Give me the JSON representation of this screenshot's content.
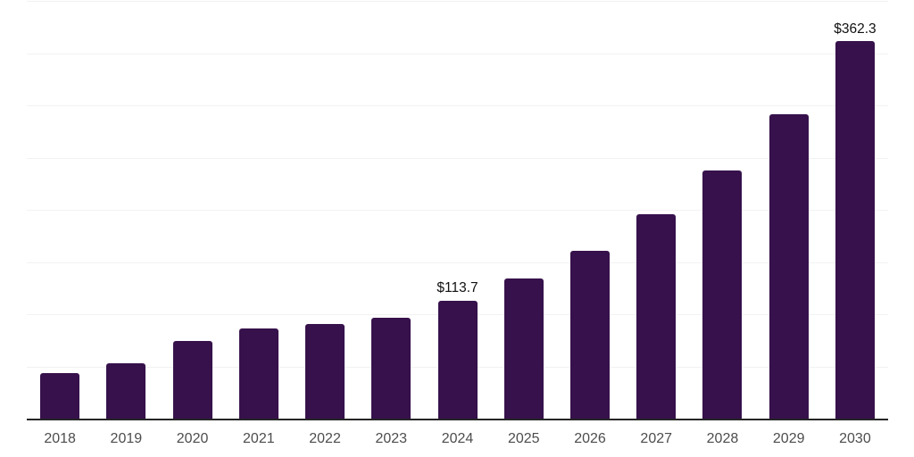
{
  "chart_data": {
    "type": "bar",
    "title": "",
    "xlabel": "",
    "ylabel": "",
    "categories": [
      "2018",
      "2019",
      "2020",
      "2021",
      "2022",
      "2023",
      "2024",
      "2025",
      "2026",
      "2027",
      "2028",
      "2029",
      "2030"
    ],
    "values": [
      44.2,
      53.5,
      75.0,
      87.0,
      91.2,
      97.7,
      113.7,
      135.4,
      161.5,
      197.0,
      238.5,
      292.3,
      362.3
    ],
    "data_labels": [
      "",
      "",
      "",
      "",
      "",
      "",
      "$113.7",
      "",
      "",
      "",
      "",
      "",
      "$362.3"
    ],
    "ylim": [
      0,
      400
    ],
    "gridline_interval": 50,
    "grid": "horizontal",
    "legend": "none",
    "y_axis_tick_labels_visible": false,
    "colors": {
      "bar": "#36114B",
      "gridline": "#F2F2F2",
      "axis_line": "#262626",
      "x_tick_label": "#4D4D4D",
      "data_label": "#111111",
      "background": "#FFFFFF"
    }
  }
}
